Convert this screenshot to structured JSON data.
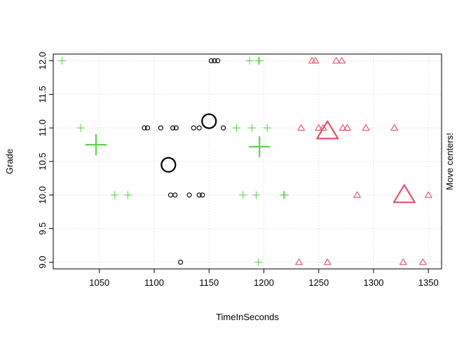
{
  "chart_data": {
    "type": "scatter",
    "title": "",
    "xlabel": "TimeInSeconds",
    "ylabel": "Grade",
    "right_label": "Move centers!",
    "xlim": [
      1008,
      1362
    ],
    "ylim": [
      8.9,
      12.1
    ],
    "xticks": [
      1050,
      1100,
      1150,
      1200,
      1250,
      1300,
      1350
    ],
    "yticks": [
      9.0,
      9.5,
      10.0,
      10.5,
      11.0,
      11.5,
      12.0
    ],
    "grid": true,
    "colors": {
      "cluster_circle": "#000000",
      "cluster_triangle": "#DF536B",
      "cluster_plus": "#61D04F",
      "grid": "#d3d3d3"
    },
    "series": [
      {
        "marker": "circle",
        "color": "#000000",
        "points": [
          [
            1124,
            9.0
          ],
          [
            1115,
            10.0
          ],
          [
            1119,
            10.0
          ],
          [
            1132,
            10.0
          ],
          [
            1141,
            10.0
          ],
          [
            1144,
            10.0
          ],
          [
            1091,
            11.0
          ],
          [
            1094,
            11.0
          ],
          [
            1106,
            11.0
          ],
          [
            1117,
            11.0
          ],
          [
            1120,
            11.0
          ],
          [
            1136,
            11.0
          ],
          [
            1141,
            11.0
          ],
          [
            1163,
            11.0
          ],
          [
            1152,
            12.0
          ],
          [
            1155,
            12.0
          ],
          [
            1158,
            12.0
          ]
        ]
      },
      {
        "marker": "triangle",
        "color": "#DF536B",
        "points": [
          [
            1232,
            9.0
          ],
          [
            1258,
            9.0
          ],
          [
            1327,
            9.0
          ],
          [
            1345,
            9.0
          ],
          [
            1285,
            10.0
          ],
          [
            1350,
            10.0
          ],
          [
            1234,
            11.0
          ],
          [
            1250,
            11.0
          ],
          [
            1254,
            11.0
          ],
          [
            1272,
            11.0
          ],
          [
            1276,
            11.0
          ],
          [
            1293,
            11.0
          ],
          [
            1319,
            11.0
          ],
          [
            1244,
            12.0
          ],
          [
            1247,
            12.0
          ],
          [
            1266,
            12.0
          ],
          [
            1271,
            12.0
          ]
        ]
      },
      {
        "marker": "plus",
        "color": "#61D04F",
        "points": [
          [
            1195,
            9.0
          ],
          [
            1064,
            10.0
          ],
          [
            1076,
            10.0
          ],
          [
            1181,
            10.0
          ],
          [
            1193,
            10.0
          ],
          [
            1218,
            10.0
          ],
          [
            1219,
            10.0
          ],
          [
            1033,
            11.0
          ],
          [
            1175,
            11.0
          ],
          [
            1189,
            11.0
          ],
          [
            1203,
            11.0
          ],
          [
            1016,
            12.0
          ],
          [
            1187,
            12.0
          ],
          [
            1195,
            12.0
          ],
          [
            1196,
            12.0
          ]
        ]
      }
    ],
    "centers": [
      {
        "marker": "circle",
        "color": "#000000",
        "x": 1113,
        "y": 10.45
      },
      {
        "marker": "circle",
        "color": "#000000",
        "x": 1150,
        "y": 11.1
      },
      {
        "marker": "triangle",
        "color": "#DF536B",
        "x": 1258,
        "y": 10.95
      },
      {
        "marker": "triangle",
        "color": "#DF536B",
        "x": 1328,
        "y": 10.0
      },
      {
        "marker": "plus",
        "color": "#61D04F",
        "x": 1047,
        "y": 10.75
      },
      {
        "marker": "plus",
        "color": "#61D04F",
        "x": 1196,
        "y": 10.72
      }
    ]
  }
}
